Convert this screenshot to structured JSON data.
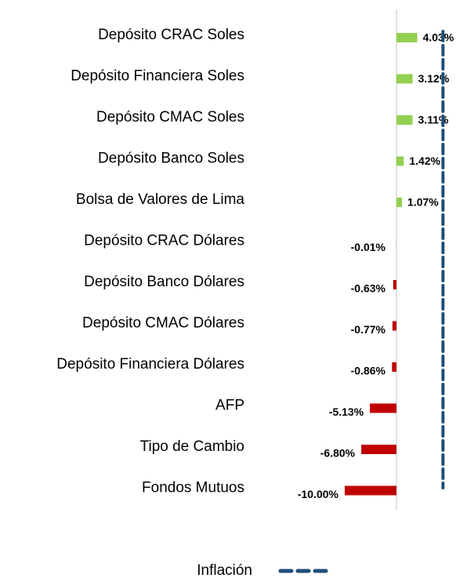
{
  "chart_data": {
    "type": "hbar",
    "categories": [
      "Depósito CRAC Soles",
      "Depósito Financiera Soles",
      "Depósito CMAC Soles",
      "Depósito Banco Soles",
      "Bolsa de Valores de Lima",
      "Depósito CRAC Dólares",
      "Depósito Banco Dólares",
      "Depósito CMAC Dólares",
      "Depósito Financiera Dólares",
      "AFP",
      "Tipo de Cambio",
      "Fondos Mutuos"
    ],
    "values": [
      4.03,
      3.12,
      3.11,
      1.42,
      1.07,
      -0.01,
      -0.63,
      -0.77,
      -0.86,
      -5.13,
      -6.8,
      -10.0
    ],
    "value_labels": [
      "4.03%",
      "3.12%",
      "3.11%",
      "1.42%",
      "1.07%",
      "-0.01%",
      "-0.63%",
      "-0.77%",
      "-0.86%",
      "-5.13%",
      "-6.80%",
      "-10.00%"
    ],
    "positive_color": "#92d050",
    "negative_color": "#c00000",
    "inflation": {
      "name": "Inflación",
      "value": 9.0,
      "color": "#1f4e79"
    }
  }
}
